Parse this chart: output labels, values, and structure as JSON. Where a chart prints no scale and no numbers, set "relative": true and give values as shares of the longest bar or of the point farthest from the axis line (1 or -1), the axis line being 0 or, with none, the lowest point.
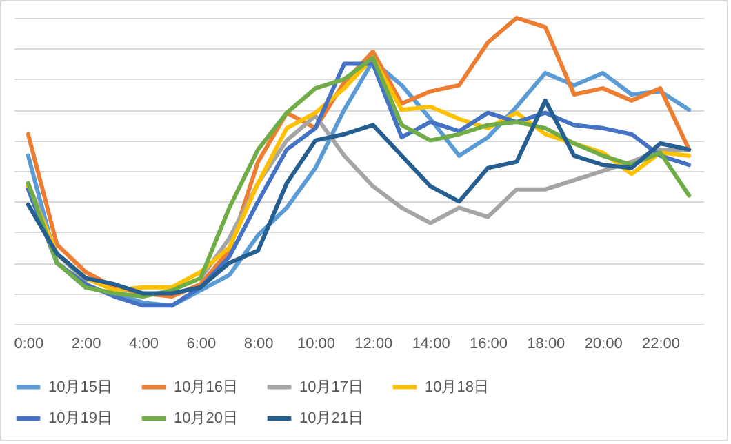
{
  "chart_data": {
    "type": "line",
    "relative": true,
    "grid": "y",
    "legend": "bottom",
    "line_style": "solid",
    "categories": [
      "0:00",
      null,
      "2:00",
      null,
      "4:00",
      null,
      "6:00",
      null,
      "8:00",
      null,
      "10:00",
      null,
      "12:00",
      null,
      "14:00",
      null,
      "16:00",
      null,
      "18:00",
      null,
      "20:00",
      null,
      "22:00",
      null
    ],
    "series": [
      {
        "name": "10月15日",
        "color": "#5b9bd5",
        "values": [
          0.55,
          0.2,
          0.12,
          0.1,
          0.07,
          0.06,
          0.11,
          0.16,
          0.29,
          0.38,
          0.51,
          0.7,
          0.86,
          0.78,
          0.67,
          0.55,
          0.61,
          0.71,
          0.82,
          0.78,
          0.82,
          0.75,
          0.76,
          0.7
        ]
      },
      {
        "name": "10月16日",
        "color": "#ed7d31",
        "values": [
          0.62,
          0.26,
          0.17,
          0.12,
          0.1,
          0.09,
          0.13,
          0.24,
          0.53,
          0.69,
          0.64,
          0.79,
          0.89,
          0.72,
          0.76,
          0.78,
          0.92,
          1,
          0.97,
          0.75,
          0.77,
          0.73,
          0.77,
          0.57
        ]
      },
      {
        "name": "10月17日",
        "color": "#a5a5a5",
        "values": [
          0.46,
          0.23,
          0.14,
          null,
          null,
          null,
          0.15,
          0.28,
          0.46,
          0.6,
          0.68,
          0.55,
          0.45,
          0.38,
          0.33,
          0.38,
          0.35,
          0.44,
          0.44,
          0.47,
          0.5,
          0.53,
          0.57,
          0.57
        ]
      },
      {
        "name": "10月18日",
        "color": "#ffc000",
        "values": [
          0.45,
          0.23,
          0.15,
          0.11,
          0.12,
          0.12,
          0.17,
          0.25,
          0.46,
          0.64,
          0.69,
          0.77,
          0.87,
          0.7,
          0.71,
          0.67,
          0.64,
          0.69,
          0.62,
          0.59,
          0.56,
          0.49,
          0.56,
          0.55
        ]
      },
      {
        "name": "10月19日",
        "color": "#4472c4",
        "values": [
          0.44,
          0.2,
          0.13,
          0.09,
          0.06,
          0.06,
          0.12,
          0.22,
          0.4,
          0.57,
          0.64,
          0.85,
          0.85,
          0.61,
          0.66,
          0.63,
          0.69,
          0.66,
          0.69,
          0.65,
          0.64,
          0.62,
          0.55,
          0.52
        ]
      },
      {
        "name": "10月20日",
        "color": "#70ad47",
        "values": [
          0.46,
          0.2,
          0.12,
          0.1,
          0.09,
          0.11,
          0.15,
          0.38,
          0.57,
          0.69,
          0.77,
          0.8,
          0.87,
          0.65,
          0.6,
          0.62,
          0.65,
          0.66,
          0.64,
          0.59,
          0.55,
          0.52,
          0.56,
          0.42
        ]
      },
      {
        "name": "10月21日",
        "color": "#255e91",
        "values": [
          0.39,
          0.23,
          0.15,
          0.13,
          0.1,
          0.1,
          0.12,
          0.2,
          0.24,
          0.46,
          0.6,
          0.62,
          0.65,
          0.55,
          0.45,
          0.4,
          0.51,
          0.53,
          0.73,
          0.55,
          0.52,
          0.51,
          0.59,
          0.57
        ]
      }
    ]
  }
}
